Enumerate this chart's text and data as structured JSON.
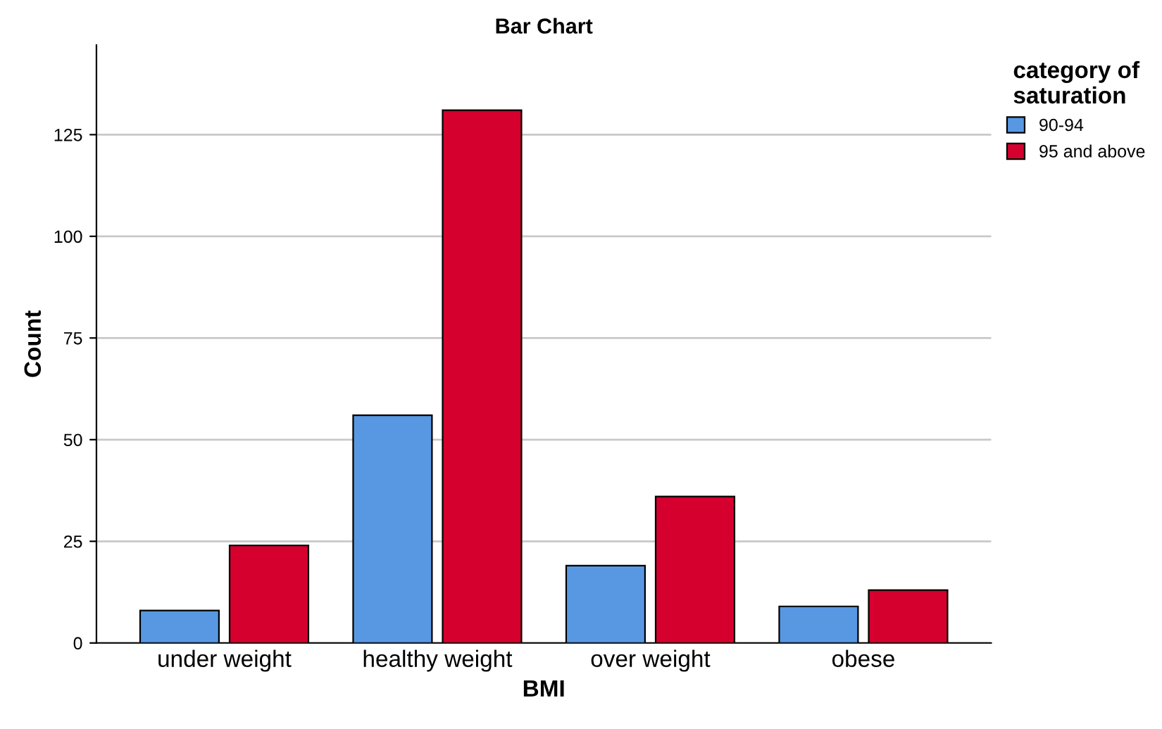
{
  "chart_data": {
    "type": "bar",
    "title": "Bar Chart",
    "xlabel": "BMI",
    "ylabel": "Count",
    "legend_title": "category of\nsaturation",
    "categories": [
      "under weight",
      "healthy weight",
      "over weight",
      "obese"
    ],
    "series": [
      {
        "name": "90-94",
        "color": "#5898e3",
        "values": [
          8,
          56,
          19,
          9
        ]
      },
      {
        "name": "95 and above",
        "color": "#d5002e",
        "values": [
          24,
          131,
          36,
          13
        ]
      }
    ],
    "ylim": [
      0,
      147
    ],
    "yticks": [
      0,
      25,
      50,
      75,
      100,
      125
    ],
    "grid": "y",
    "legend": "top right"
  }
}
